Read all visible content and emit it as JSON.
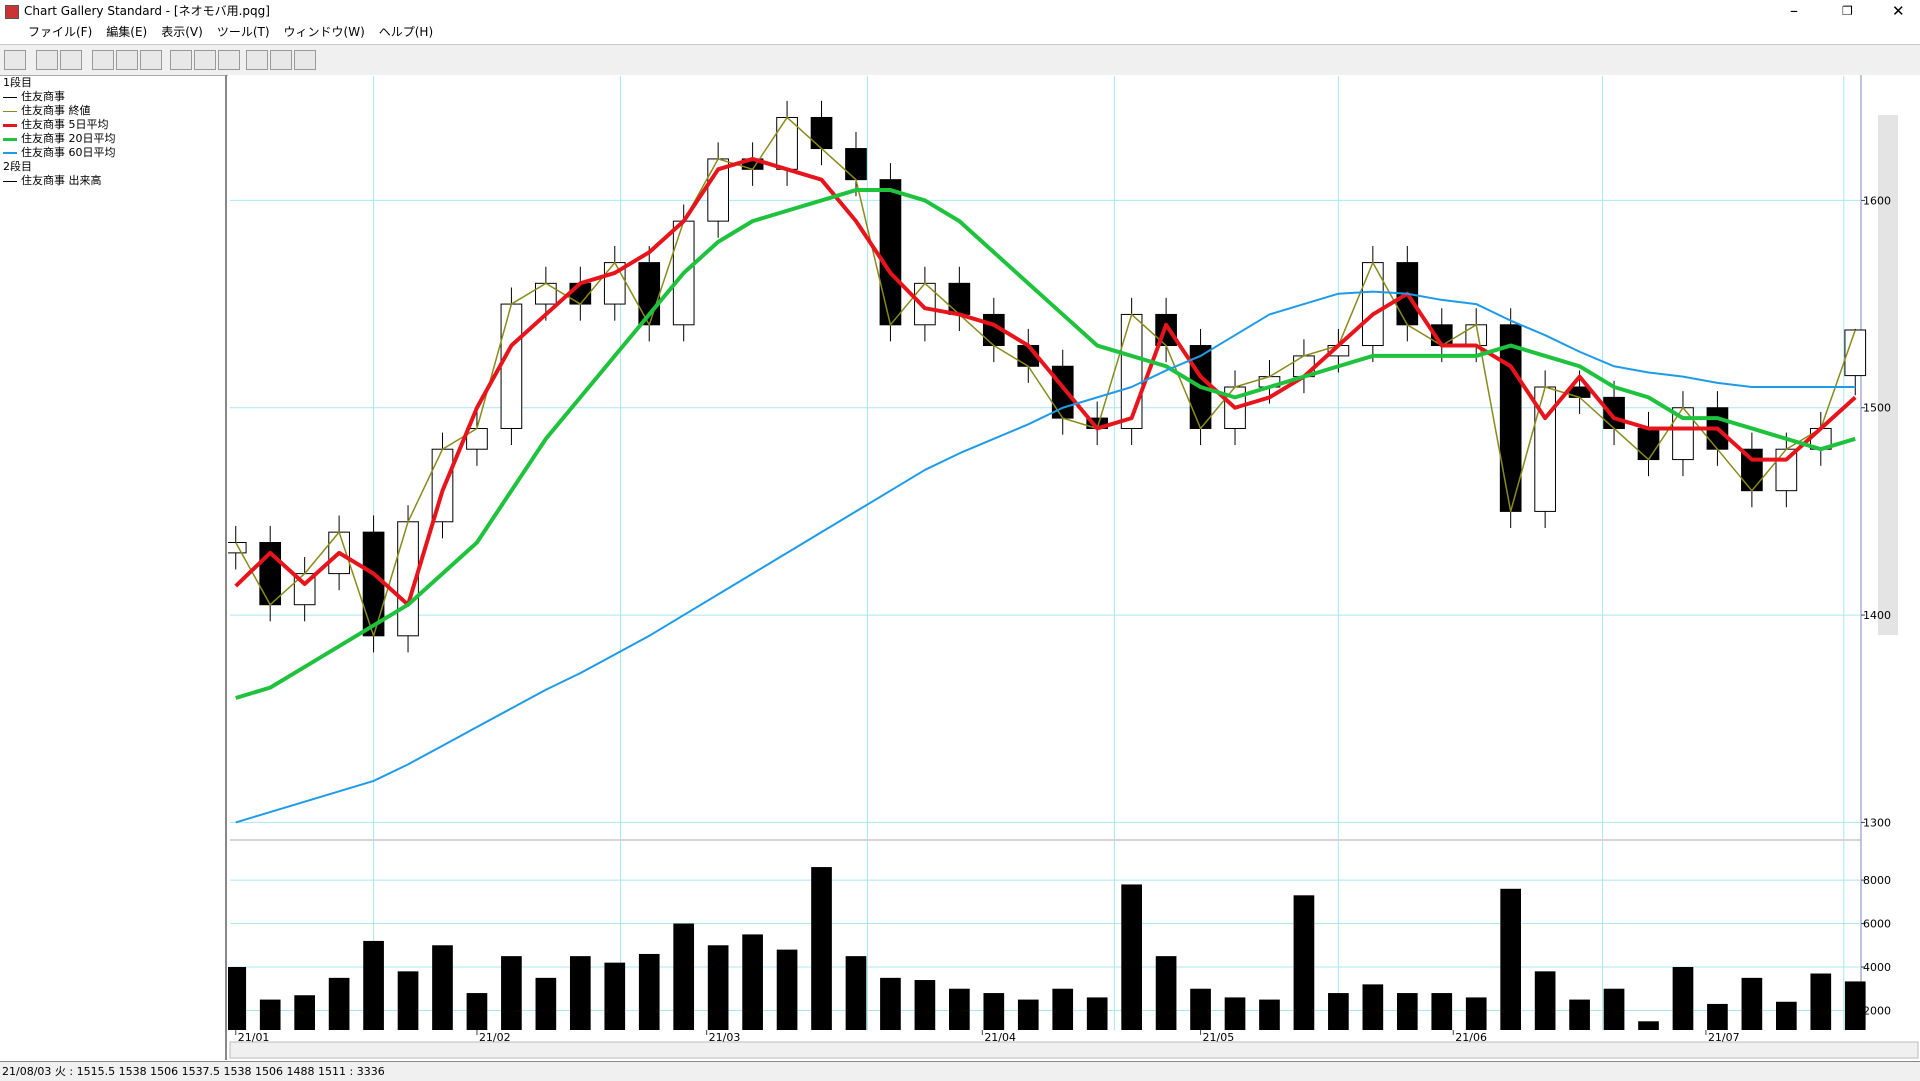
{
  "window": {
    "title": "Chart Gallery Standard - [ネオモバ用.pqg]"
  },
  "menu": [
    "ファイル(F)",
    "編集(E)",
    "表示(V)",
    "ツール(T)",
    "ウィンドウ(W)",
    "ヘルプ(H)"
  ],
  "chart_data": [
    {
      "type": "candlestick",
      "panel": "1段目",
      "name": "住友商事",
      "color": "#000000",
      "x": [
        0,
        3,
        6,
        9,
        12,
        15,
        18,
        21,
        24,
        27,
        30,
        33,
        36,
        39,
        42,
        45,
        48,
        51,
        54,
        57,
        60,
        63,
        66,
        69,
        72,
        75,
        78,
        81,
        84,
        87,
        90,
        93,
        96,
        99,
        102,
        105,
        108,
        111,
        114,
        117,
        120,
        123,
        126,
        129,
        132,
        135,
        138,
        141
      ],
      "open": [
        1430,
        1435,
        1405,
        1420,
        1440,
        1390,
        1445,
        1480,
        1490,
        1550,
        1560,
        1550,
        1570,
        1540,
        1590,
        1620,
        1615,
        1640,
        1625,
        1610,
        1540,
        1560,
        1545,
        1530,
        1520,
        1495,
        1490,
        1545,
        1530,
        1490,
        1510,
        1515,
        1525,
        1530,
        1570,
        1540,
        1530,
        1540,
        1450,
        1510,
        1505,
        1490,
        1475,
        1500,
        1480,
        1460,
        1480,
        1515.5
      ],
      "high": [
        1443,
        1443,
        1428,
        1448,
        1448,
        1453,
        1488,
        1498,
        1558,
        1568,
        1568,
        1578,
        1578,
        1598,
        1628,
        1628,
        1648,
        1648,
        1633,
        1618,
        1568,
        1568,
        1553,
        1538,
        1528,
        1503,
        1553,
        1553,
        1538,
        1518,
        1523,
        1533,
        1538,
        1578,
        1578,
        1548,
        1548,
        1548,
        1518,
        1518,
        1513,
        1498,
        1508,
        1508,
        1488,
        1488,
        1498,
        1538
      ],
      "low": [
        1422,
        1397,
        1397,
        1412,
        1382,
        1382,
        1437,
        1472,
        1482,
        1542,
        1542,
        1542,
        1532,
        1532,
        1582,
        1607,
        1607,
        1617,
        1602,
        1532,
        1532,
        1537,
        1522,
        1512,
        1487,
        1482,
        1482,
        1522,
        1482,
        1482,
        1502,
        1507,
        1517,
        1522,
        1532,
        1522,
        1522,
        1442,
        1442,
        1497,
        1482,
        1467,
        1467,
        1472,
        1452,
        1452,
        1472,
        1506
      ],
      "close": [
        1435,
        1405,
        1420,
        1440,
        1390,
        1445,
        1480,
        1490,
        1550,
        1560,
        1550,
        1570,
        1540,
        1590,
        1620,
        1615,
        1640,
        1625,
        1610,
        1540,
        1560,
        1545,
        1530,
        1520,
        1495,
        1490,
        1545,
        1530,
        1490,
        1510,
        1515,
        1525,
        1530,
        1570,
        1540,
        1530,
        1540,
        1450,
        1510,
        1505,
        1490,
        1475,
        1500,
        1480,
        1460,
        1480,
        1490,
        1537.5
      ],
      "series": [
        {
          "name": "住友商事 終値",
          "color": "#8a8a1a",
          "width": 1.5,
          "values": [
            1435,
            1405,
            1420,
            1440,
            1390,
            1445,
            1480,
            1490,
            1550,
            1560,
            1550,
            1570,
            1540,
            1590,
            1620,
            1615,
            1640,
            1625,
            1610,
            1540,
            1560,
            1545,
            1530,
            1520,
            1495,
            1490,
            1545,
            1530,
            1490,
            1510,
            1515,
            1525,
            1530,
            1570,
            1540,
            1530,
            1540,
            1450,
            1510,
            1505,
            1490,
            1475,
            1500,
            1480,
            1460,
            1480,
            1490,
            1537.5
          ]
        },
        {
          "name": "住友商事 5日平均",
          "color": "#e8141c",
          "width": 4,
          "values": [
            1414,
            1430,
            1415,
            1430,
            1420,
            1405,
            1460,
            1500,
            1530,
            1545,
            1560,
            1565,
            1575,
            1590,
            1615,
            1620,
            1615,
            1610,
            1590,
            1565,
            1548,
            1545,
            1540,
            1530,
            1510,
            1490,
            1495,
            1540,
            1515,
            1500,
            1505,
            1515,
            1530,
            1545,
            1555,
            1530,
            1530,
            1520,
            1495,
            1515,
            1495,
            1490,
            1490,
            1490,
            1475,
            1475,
            1490,
            1505
          ]
        },
        {
          "name": "住友商事 20日平均",
          "color": "#1ec23c",
          "width": 4,
          "values": [
            1360,
            1365,
            1375,
            1385,
            1395,
            1405,
            1420,
            1435,
            1460,
            1485,
            1505,
            1525,
            1545,
            1565,
            1580,
            1590,
            1595,
            1600,
            1605,
            1605,
            1600,
            1590,
            1575,
            1560,
            1545,
            1530,
            1525,
            1520,
            1510,
            1505,
            1510,
            1515,
            1520,
            1525,
            1525,
            1525,
            1525,
            1530,
            1525,
            1520,
            1510,
            1505,
            1495,
            1495,
            1490,
            1485,
            1480,
            1485
          ]
        },
        {
          "name": "住友商事 60日平均",
          "color": "#1e9be8",
          "width": 2,
          "values": [
            1300,
            1305,
            1310,
            1315,
            1320,
            1328,
            1337,
            1346,
            1355,
            1364,
            1372,
            1381,
            1390,
            1400,
            1410,
            1420,
            1430,
            1440,
            1450,
            1460,
            1470,
            1478,
            1485,
            1492,
            1500,
            1505,
            1510,
            1518,
            1525,
            1535,
            1545,
            1550,
            1555,
            1556,
            1555,
            1552,
            1550,
            1542,
            1535,
            1527,
            1520,
            1517,
            1515,
            1512,
            1510,
            1510,
            1510,
            1510
          ]
        }
      ],
      "xlim": [
        -0.5,
        141.5
      ],
      "ylim": [
        1292,
        1660
      ],
      "yticks": [
        1300,
        1400,
        1500,
        1600
      ],
      "xgrid": [
        12,
        33.5,
        55,
        76.5,
        96,
        119,
        140
      ],
      "xticks": [
        {
          "value": 0,
          "label": "21/01"
        },
        {
          "value": 21,
          "label": "21/02"
        },
        {
          "value": 41,
          "label": "21/03"
        },
        {
          "value": 65,
          "label": "21/04"
        },
        {
          "value": 84,
          "label": "21/05"
        },
        {
          "value": 106,
          "label": "21/06"
        },
        {
          "value": 128,
          "label": "21/07"
        }
      ],
      "grid": true
    },
    {
      "type": "bar",
      "panel": "2段目",
      "name": "住友商事 出来高",
      "color": "#000000",
      "x": [
        0,
        3,
        6,
        9,
        12,
        15,
        18,
        21,
        24,
        27,
        30,
        33,
        36,
        39,
        42,
        45,
        48,
        51,
        54,
        57,
        60,
        63,
        66,
        69,
        72,
        75,
        78,
        81,
        84,
        87,
        90,
        93,
        96,
        99,
        102,
        105,
        108,
        111,
        114,
        117,
        120,
        123,
        126,
        129,
        132,
        135,
        138,
        141
      ],
      "values": [
        4000,
        2500,
        2700,
        3500,
        5200,
        3800,
        5000,
        2800,
        4500,
        3500,
        4500,
        4200,
        4600,
        6000,
        5000,
        5500,
        4800,
        8600,
        4500,
        3500,
        3400,
        3000,
        2800,
        2500,
        3000,
        2600,
        7800,
        4500,
        3000,
        2600,
        2500,
        7300,
        2800,
        3200,
        2800,
        2800,
        2600,
        7600,
        3800,
        2500,
        3000,
        1500,
        4000,
        2300,
        3500,
        2400,
        3700,
        3336
      ],
      "xlim": [
        -0.5,
        141.5
      ],
      "ylim": [
        1100,
        9800
      ],
      "yticks": [
        2000,
        4000,
        6000,
        8000
      ],
      "grid": true
    }
  ],
  "status": "21/08/03 火 : 1515.5 1538 1506 1537.5 1538 1506 1488 1511 : 3336"
}
